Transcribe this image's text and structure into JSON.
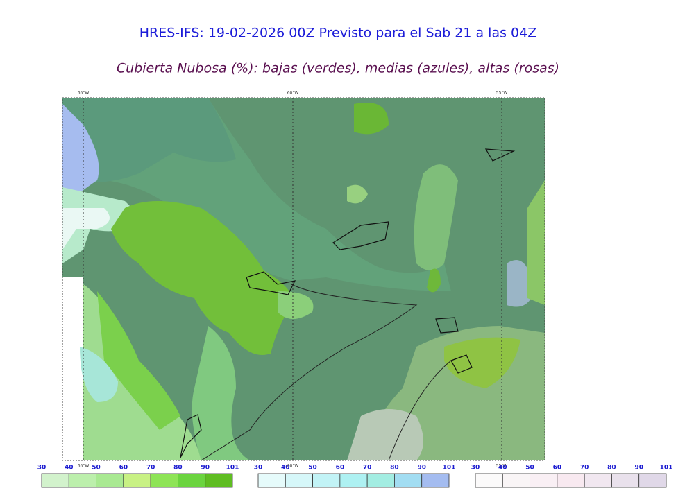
{
  "header": {
    "title": "HRES-IFS: 19-02-2026 00Z Previsto para el Sab 21 a las 04Z",
    "subtitle": "Cubierta Nubosa (%): bajas (verdes), medias (azules), altas (rosas)"
  },
  "map": {
    "longitude_labels_top": [
      "65°W",
      "60°W",
      "55°W"
    ],
    "longitude_labels_bottom": [
      "65°W",
      "60°W",
      "55°W"
    ]
  },
  "legends": [
    {
      "ticks": [
        30,
        40,
        50,
        60,
        70,
        80,
        90,
        101
      ],
      "colors": [
        "#d2f2cc",
        "#bcefac",
        "#a9e992",
        "#c8f184",
        "#8ee456",
        "#6bd43f",
        "#5fbd22"
      ]
    },
    {
      "ticks": [
        30,
        40,
        50,
        60,
        70,
        80,
        90,
        101
      ],
      "colors": [
        "#e6fbfb",
        "#d6f7f9",
        "#c2f3f6",
        "#aef1f2",
        "#a3ede2",
        "#a2ddf2",
        "#a4bcf0"
      ]
    },
    {
      "ticks": [
        30,
        40,
        50,
        60,
        70,
        80,
        90,
        101
      ],
      "colors": [
        "#fbfafa",
        "#f9f5f6",
        "#f9eff4",
        "#f8e9f0",
        "#f1e7f0",
        "#e9e1ec",
        "#e0d8e8"
      ]
    }
  ]
}
